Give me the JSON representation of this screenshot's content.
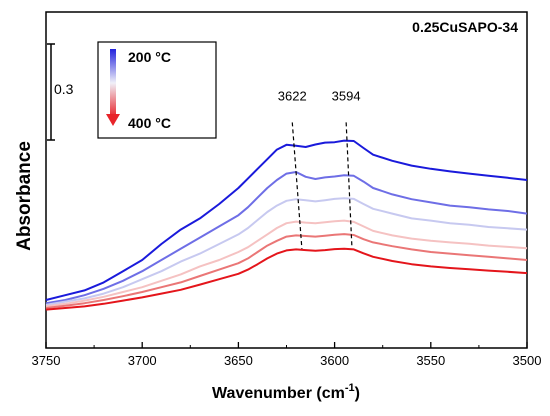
{
  "chart_data": {
    "type": "line",
    "title": "0.25CuSAPO-34",
    "xlabel": "Wavenumber (cm",
    "xlabel_sup": "-1",
    "xlabel_tail": ")",
    "ylabel": "Absorbance",
    "xlim": [
      3750,
      3500
    ],
    "x_reversed": true,
    "ylim": [
      0,
      1.05
    ],
    "y_ticks_shown": false,
    "x_ticks": [
      3750,
      3700,
      3650,
      3600,
      3550,
      3500
    ],
    "x_tick_labels": [
      "3750",
      "3700",
      "3650",
      "3600",
      "3550",
      "3500"
    ],
    "scale_bar": {
      "label": "0.3",
      "value": 0.3,
      "y_from": 0.65,
      "y_to": 0.95
    },
    "legend": {
      "placement": "top-left",
      "top_label": "200 °C",
      "bottom_label": "400 °C",
      "top_color": "#2222dd",
      "bottom_color": "#e8242a"
    },
    "annotations": [
      {
        "label": "3622",
        "x_top": 3622,
        "y_top": 0.705,
        "x_bottom": 3617,
        "y_bottom": 0.31
      },
      {
        "label": "3594",
        "x_top": 3594,
        "y_top": 0.705,
        "x_bottom": 3591,
        "y_bottom": 0.315
      }
    ],
    "series": [
      {
        "color": "#1a1adb",
        "x": [
          3750,
          3740,
          3730,
          3720,
          3710,
          3700,
          3690,
          3680,
          3670,
          3660,
          3650,
          3645,
          3640,
          3635,
          3630,
          3625,
          3620,
          3615,
          3610,
          3605,
          3600,
          3595,
          3590,
          3585,
          3580,
          3570,
          3560,
          3550,
          3540,
          3530,
          3520,
          3510,
          3500
        ],
        "y": [
          0.15,
          0.165,
          0.18,
          0.205,
          0.24,
          0.275,
          0.325,
          0.37,
          0.405,
          0.45,
          0.5,
          0.53,
          0.56,
          0.59,
          0.62,
          0.635,
          0.632,
          0.628,
          0.636,
          0.642,
          0.643,
          0.648,
          0.647,
          0.625,
          0.604,
          0.585,
          0.57,
          0.56,
          0.552,
          0.545,
          0.538,
          0.532,
          0.525
        ]
      },
      {
        "color": "#6e6ee6",
        "x": [
          3750,
          3740,
          3730,
          3720,
          3710,
          3700,
          3690,
          3680,
          3670,
          3660,
          3650,
          3645,
          3640,
          3635,
          3630,
          3625,
          3620,
          3615,
          3610,
          3605,
          3600,
          3595,
          3590,
          3585,
          3580,
          3570,
          3560,
          3550,
          3540,
          3530,
          3520,
          3510,
          3500
        ],
        "y": [
          0.14,
          0.15,
          0.165,
          0.185,
          0.21,
          0.24,
          0.275,
          0.31,
          0.345,
          0.38,
          0.415,
          0.44,
          0.47,
          0.5,
          0.525,
          0.545,
          0.55,
          0.535,
          0.528,
          0.533,
          0.536,
          0.54,
          0.538,
          0.52,
          0.5,
          0.48,
          0.465,
          0.455,
          0.445,
          0.44,
          0.433,
          0.428,
          0.42
        ]
      },
      {
        "color": "#c7c9f0",
        "x": [
          3750,
          3740,
          3730,
          3720,
          3710,
          3700,
          3690,
          3680,
          3670,
          3660,
          3650,
          3645,
          3640,
          3635,
          3630,
          3625,
          3620,
          3615,
          3610,
          3605,
          3600,
          3595,
          3590,
          3585,
          3580,
          3570,
          3560,
          3550,
          3540,
          3530,
          3520,
          3510,
          3500
        ],
        "y": [
          0.135,
          0.145,
          0.155,
          0.17,
          0.19,
          0.215,
          0.24,
          0.27,
          0.295,
          0.325,
          0.355,
          0.375,
          0.4,
          0.425,
          0.445,
          0.46,
          0.465,
          0.462,
          0.458,
          0.462,
          0.466,
          0.468,
          0.466,
          0.45,
          0.435,
          0.42,
          0.405,
          0.398,
          0.39,
          0.385,
          0.378,
          0.374,
          0.37
        ]
      },
      {
        "color": "#f5c2c2",
        "x": [
          3750,
          3740,
          3730,
          3720,
          3710,
          3700,
          3690,
          3680,
          3670,
          3660,
          3650,
          3645,
          3640,
          3635,
          3630,
          3625,
          3620,
          3615,
          3610,
          3605,
          3600,
          3595,
          3590,
          3585,
          3580,
          3570,
          3560,
          3550,
          3540,
          3530,
          3520,
          3510,
          3500
        ],
        "y": [
          0.13,
          0.138,
          0.148,
          0.16,
          0.175,
          0.19,
          0.21,
          0.23,
          0.255,
          0.275,
          0.3,
          0.315,
          0.335,
          0.355,
          0.375,
          0.39,
          0.395,
          0.392,
          0.39,
          0.393,
          0.396,
          0.398,
          0.394,
          0.38,
          0.366,
          0.352,
          0.342,
          0.335,
          0.33,
          0.326,
          0.32,
          0.316,
          0.312
        ]
      },
      {
        "color": "#ea7676",
        "x": [
          3750,
          3740,
          3730,
          3720,
          3710,
          3700,
          3690,
          3680,
          3670,
          3660,
          3650,
          3645,
          3640,
          3635,
          3630,
          3625,
          3620,
          3615,
          3610,
          3605,
          3600,
          3595,
          3590,
          3585,
          3580,
          3570,
          3560,
          3550,
          3540,
          3530,
          3520,
          3510,
          3500
        ],
        "y": [
          0.125,
          0.132,
          0.14,
          0.15,
          0.162,
          0.175,
          0.19,
          0.205,
          0.225,
          0.245,
          0.265,
          0.28,
          0.3,
          0.32,
          0.335,
          0.348,
          0.352,
          0.35,
          0.348,
          0.351,
          0.354,
          0.356,
          0.353,
          0.34,
          0.33,
          0.318,
          0.308,
          0.3,
          0.295,
          0.29,
          0.285,
          0.28,
          0.275
        ]
      },
      {
        "color": "#e4151b",
        "x": [
          3750,
          3740,
          3730,
          3720,
          3710,
          3700,
          3690,
          3680,
          3670,
          3660,
          3650,
          3645,
          3640,
          3635,
          3630,
          3625,
          3620,
          3615,
          3610,
          3605,
          3600,
          3595,
          3590,
          3585,
          3580,
          3570,
          3560,
          3550,
          3540,
          3530,
          3520,
          3510,
          3500
        ],
        "y": [
          0.12,
          0.125,
          0.13,
          0.138,
          0.148,
          0.158,
          0.17,
          0.182,
          0.198,
          0.215,
          0.232,
          0.245,
          0.262,
          0.28,
          0.295,
          0.305,
          0.308,
          0.306,
          0.304,
          0.306,
          0.309,
          0.31,
          0.308,
          0.296,
          0.285,
          0.272,
          0.262,
          0.255,
          0.25,
          0.246,
          0.242,
          0.238,
          0.234
        ]
      }
    ]
  }
}
